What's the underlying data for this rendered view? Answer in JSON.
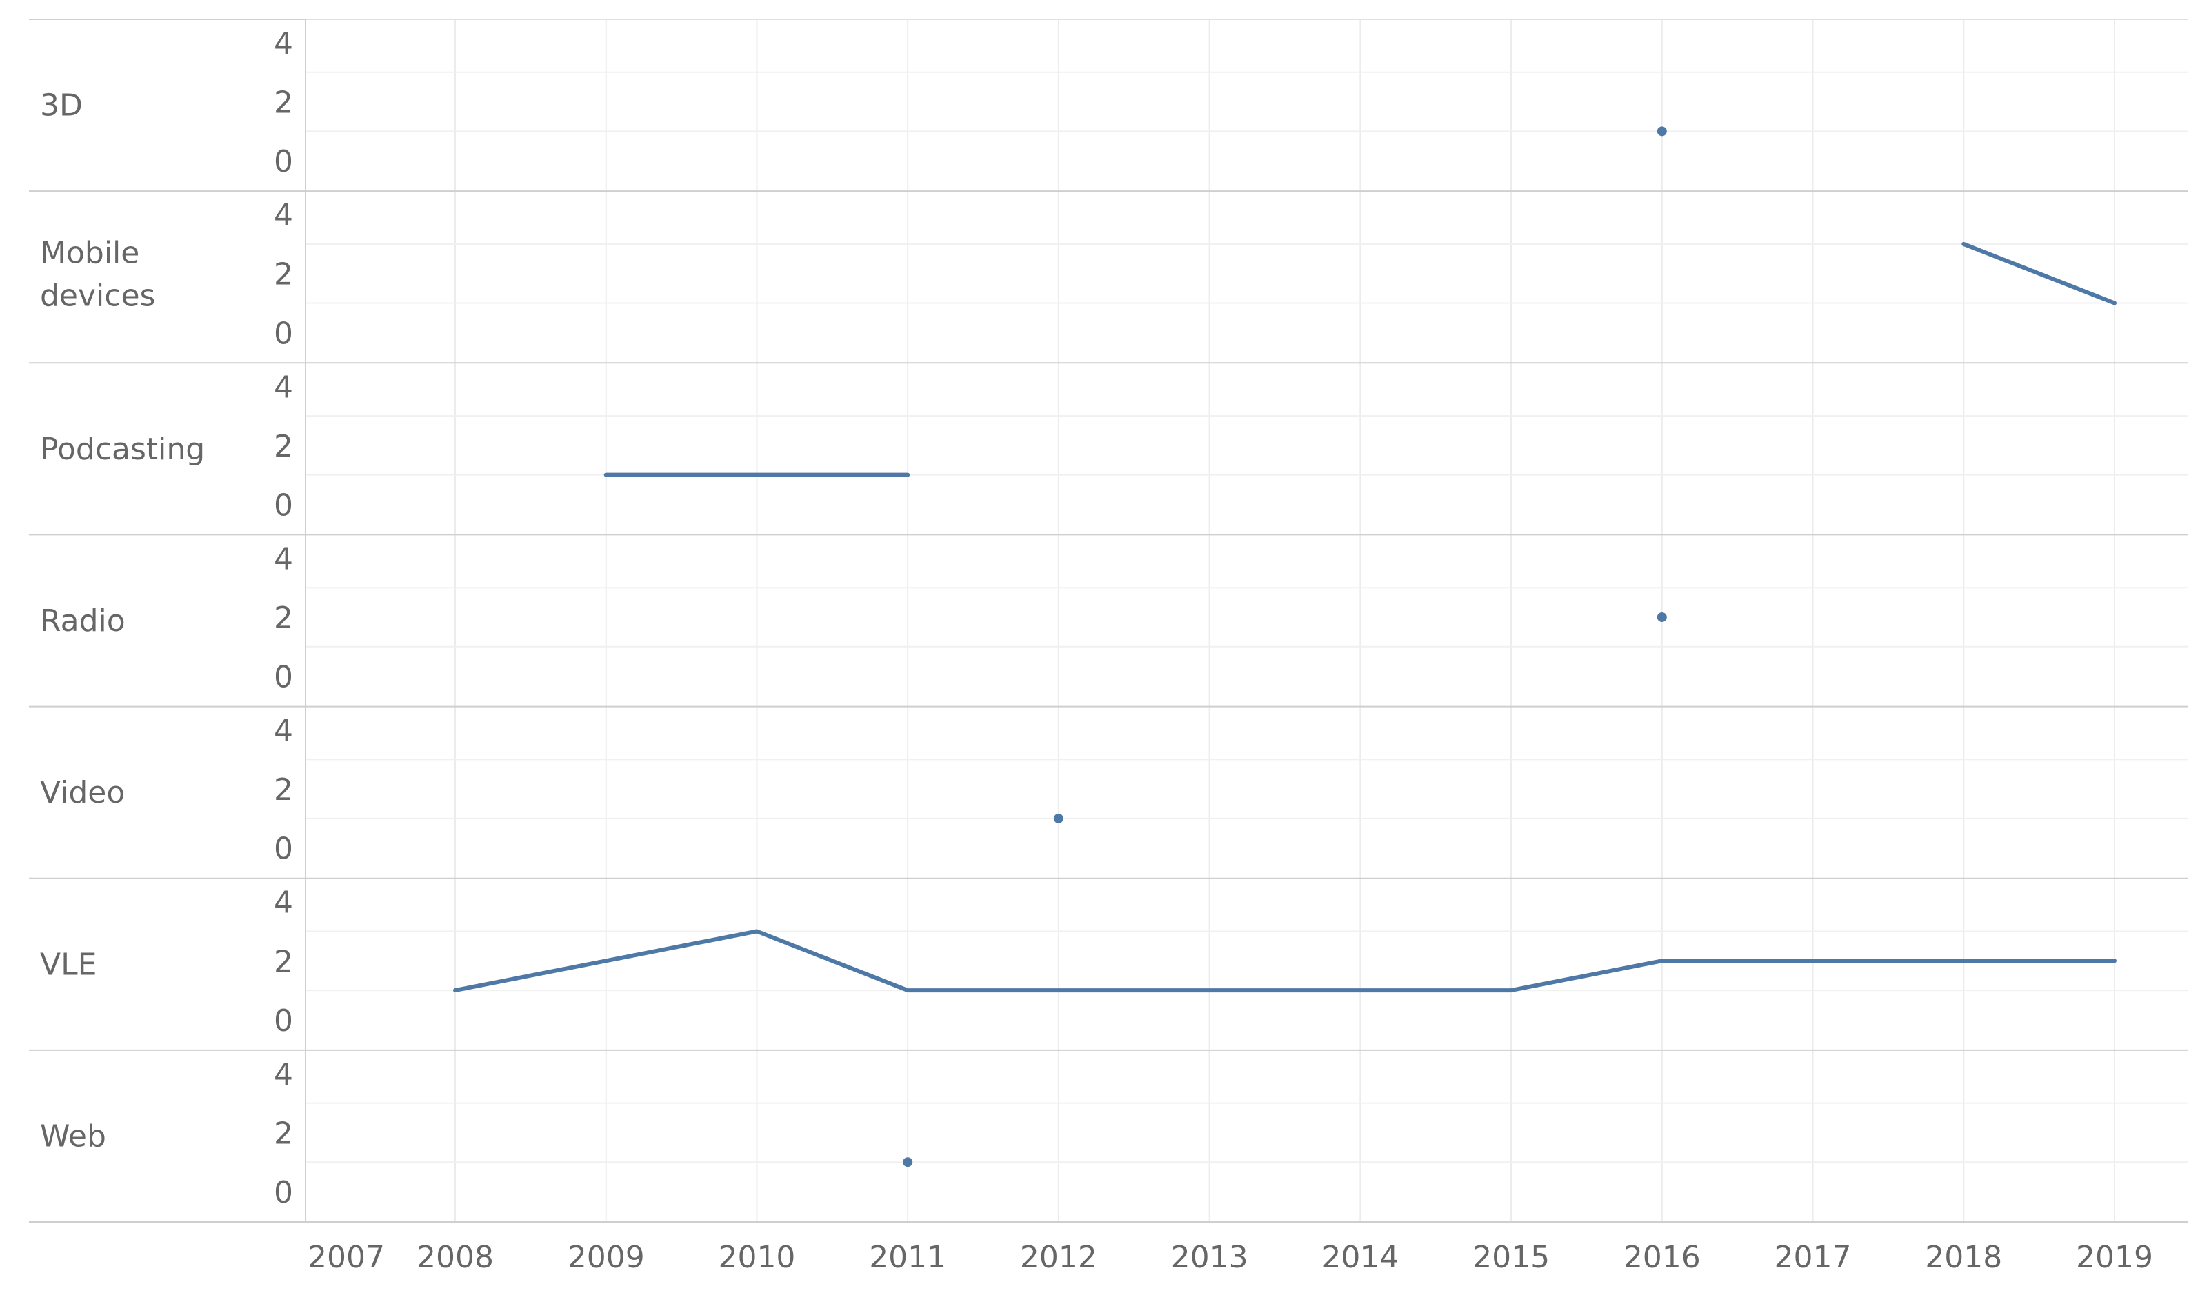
{
  "chart_data": {
    "type": "line",
    "title": "",
    "xlabel": "",
    "ylabel": "",
    "x_ticks": [
      "2007",
      "2008",
      "2009",
      "2010",
      "2011",
      "2012",
      "2013",
      "2014",
      "2015",
      "2016",
      "2017",
      "2018",
      "2019"
    ],
    "xlim": [
      2007,
      2019
    ],
    "ylim": [
      0,
      4.5
    ],
    "y_ticks": [
      "0",
      "2",
      "4"
    ],
    "grid": true,
    "color": "#4e79a7",
    "panels": [
      {
        "label": "3D",
        "points": [
          {
            "x": 2016,
            "y": 1
          }
        ]
      },
      {
        "label": "Mobile devices",
        "points": [
          {
            "x": 2018,
            "y": 3
          },
          {
            "x": 2019,
            "y": 1
          }
        ]
      },
      {
        "label": "Podcasting",
        "points": [
          {
            "x": 2009,
            "y": 1
          },
          {
            "x": 2010,
            "y": 1
          },
          {
            "x": 2011,
            "y": 1
          }
        ]
      },
      {
        "label": "Radio",
        "points": [
          {
            "x": 2016,
            "y": 2
          }
        ]
      },
      {
        "label": "Video",
        "points": [
          {
            "x": 2012,
            "y": 1
          }
        ]
      },
      {
        "label": "VLE",
        "points": [
          {
            "x": 2008,
            "y": 1
          },
          {
            "x": 2009,
            "y": 2
          },
          {
            "x": 2010,
            "y": 3
          },
          {
            "x": 2011,
            "y": 1
          },
          {
            "x": 2012,
            "y": 1
          },
          {
            "x": 2013,
            "y": 1
          },
          {
            "x": 2014,
            "y": 1
          },
          {
            "x": 2015,
            "y": 1
          },
          {
            "x": 2016,
            "y": 2
          },
          {
            "x": 2017,
            "y": 2
          },
          {
            "x": 2018,
            "y": 2
          },
          {
            "x": 2019,
            "y": 2
          }
        ]
      },
      {
        "label": "Web",
        "points": [
          {
            "x": 2011,
            "y": 1
          }
        ]
      }
    ]
  }
}
